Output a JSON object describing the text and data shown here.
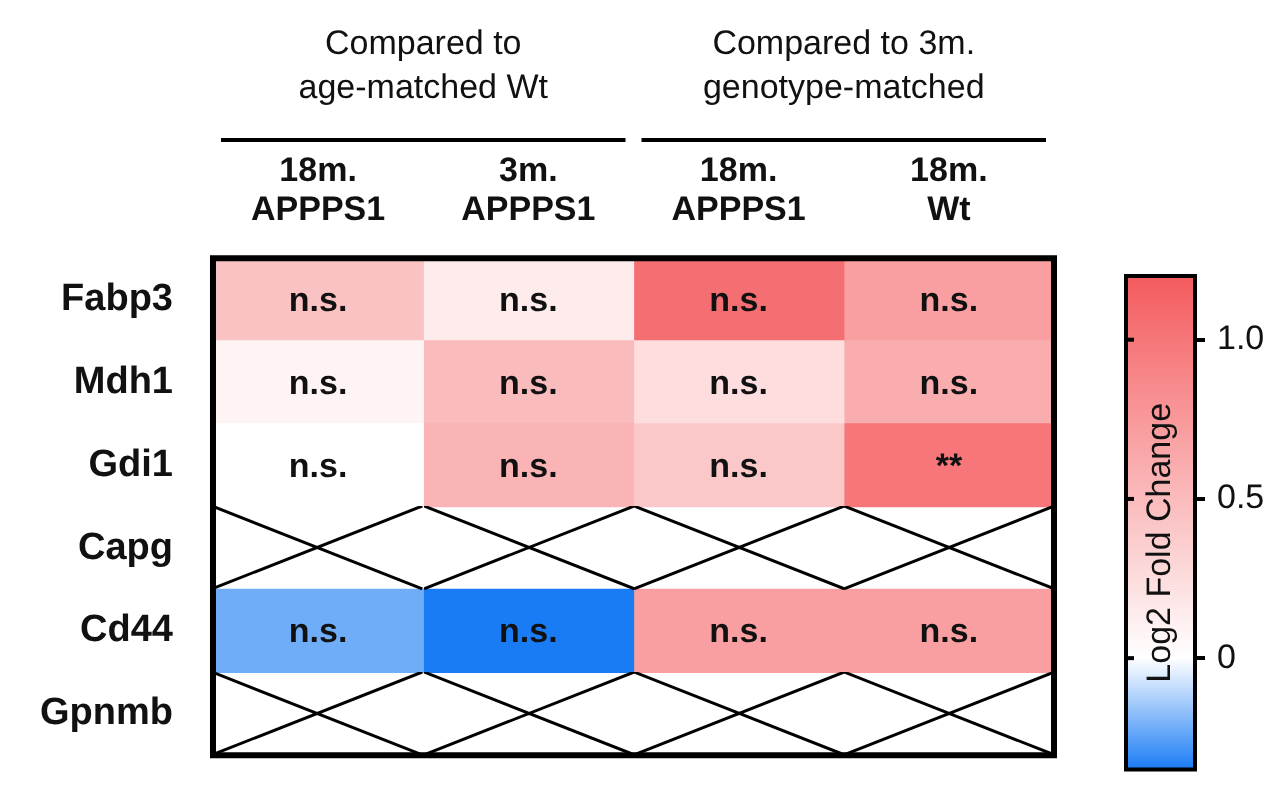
{
  "chart_data": {
    "type": "heatmap",
    "categories": [
      "18m.\nAPPPS1",
      "3m.\nAPPPS1",
      "18m.\nAPPPS1",
      "18m.\nWt"
    ],
    "y_categories": [
      "Fabp3",
      "Mdh1",
      "Gdi1",
      "Capg",
      "Cd44",
      "Gpnmb"
    ],
    "cells": [
      [
        0.45,
        0.15,
        1.05,
        0.7
      ],
      [
        0.08,
        0.5,
        0.25,
        0.6
      ],
      [
        0.0,
        0.55,
        0.4,
        1.0
      ],
      [
        null,
        null,
        null,
        null
      ],
      [
        -0.22,
        -0.35,
        0.7,
        0.7
      ],
      [
        null,
        null,
        null,
        null
      ]
    ],
    "cell_labels": [
      [
        "n.s.",
        "n.s.",
        "n.s.",
        "n.s."
      ],
      [
        "n.s.",
        "n.s.",
        "n.s.",
        "n.s."
      ],
      [
        "n.s.",
        "n.s.",
        "n.s.",
        "**"
      ],
      [
        null,
        null,
        null,
        null
      ],
      [
        "n.s.",
        "n.s.",
        "n.s.",
        "n.s."
      ],
      [
        null,
        null,
        null,
        null
      ]
    ],
    "clim": [
      -0.35,
      1.2
    ],
    "cticks": [
      0,
      0.5,
      {
        "value": 1,
        "label": "1.0"
      }
    ],
    "clabel": "Log2 Fold Change",
    "annotations": [
      "Compared to\nage-matched Wt",
      "Compared to 3m.\ngenotype-matched"
    ]
  }
}
